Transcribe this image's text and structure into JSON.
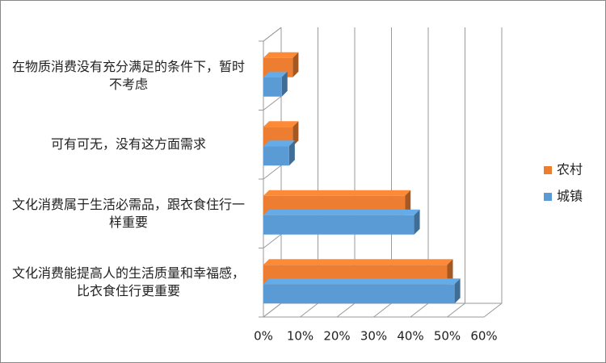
{
  "chart_data": {
    "type": "bar3d_horizontal",
    "categories": [
      "在物质消费没有充分满足的条件下，暂时不考虑",
      "可有可无，没有这方面需求",
      "文化消费属于生活必需品，跟衣食住行一样重要",
      "文化消费能提高人的生活质量和幸福感，比衣食住行更重要"
    ],
    "series": [
      {
        "name": "农村",
        "color": "#ED7D31",
        "values": [
          8,
          8,
          38.5,
          50
        ]
      },
      {
        "name": "城镇",
        "color": "#5B9BD5",
        "values": [
          5,
          7,
          41,
          52
        ]
      }
    ],
    "xlim": [
      0,
      60
    ],
    "xticks": [
      {
        "value": 0,
        "label": "0%"
      },
      {
        "value": 10,
        "label": "10%"
      },
      {
        "value": 20,
        "label": "20%"
      },
      {
        "value": 30,
        "label": "30%"
      },
      {
        "value": 40,
        "label": "40%"
      },
      {
        "value": 50,
        "label": "50%"
      },
      {
        "value": 60,
        "label": "60%"
      }
    ],
    "grid": true,
    "legend": "right"
  }
}
